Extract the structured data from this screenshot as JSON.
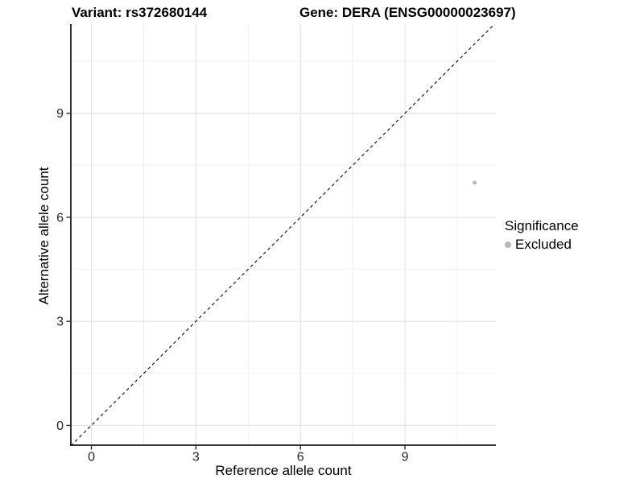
{
  "header": {
    "variant_title": "Variant: rs372680144",
    "gene_title": "Gene: DERA (ENSG00000023697)"
  },
  "chart_data": {
    "type": "scatter",
    "xlabel": "Reference allele count",
    "ylabel": "Alternative allele count",
    "xlim": [
      -0.59,
      11.61
    ],
    "ylim": [
      -0.57,
      11.57
    ],
    "xticks": [
      0,
      3,
      6,
      9
    ],
    "yticks": [
      0,
      3,
      6,
      9
    ],
    "x_minor_ticks": [
      1.5,
      4.5,
      7.5,
      10.5
    ],
    "y_minor_ticks": [
      1.5,
      4.5,
      7.5,
      10.5
    ],
    "grid": true,
    "identity_line": {
      "slope": 1,
      "intercept": 0,
      "style": "dashed",
      "color": "#111111"
    },
    "series": [
      {
        "name": "Excluded",
        "color": "#b8b8b8",
        "points": [
          {
            "x": 11,
            "y": 7
          }
        ]
      }
    ],
    "legend": {
      "position": "right",
      "title": "Significance",
      "items": [
        {
          "label": "Excluded",
          "color": "#b8b8b8"
        }
      ]
    }
  },
  "colors": {
    "background": "#ffffff",
    "grid_major": "#e3e3e3",
    "grid_minor": "#f0f0f0",
    "axis_line": "#1a1a1a",
    "tick_mark": "#1a1a1a",
    "tick_label": "#262626",
    "point_excluded": "#b8b8b8"
  }
}
